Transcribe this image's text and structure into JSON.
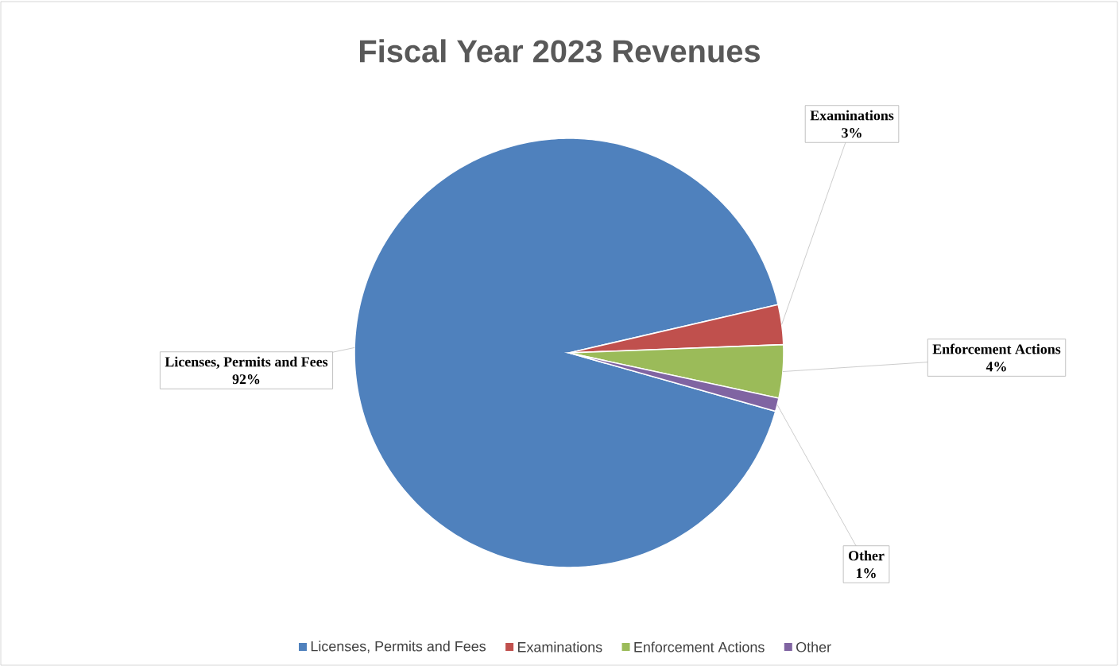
{
  "chart_data": {
    "type": "pie",
    "title": "Fiscal Year 2023 Revenues",
    "categories": [
      "Licenses, Permits and Fees",
      "Examinations",
      "Enforcement Actions",
      "Other"
    ],
    "values": [
      92,
      3,
      4,
      1
    ],
    "colors": [
      "#4f81bd",
      "#c0504d",
      "#9bbb59",
      "#8064a2"
    ],
    "value_labels": [
      "92%",
      "3%",
      "4%",
      "1%"
    ],
    "legend": "bottom"
  }
}
